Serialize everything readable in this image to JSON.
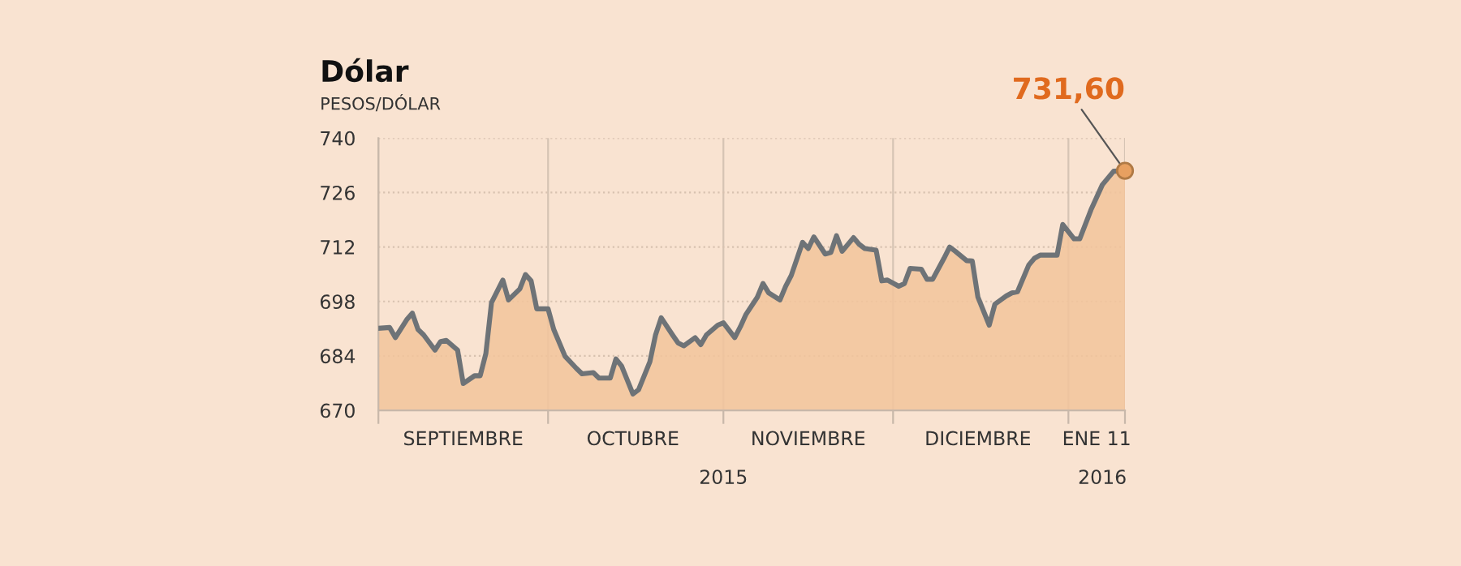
{
  "chart_data": {
    "type": "area",
    "title": "Dólar",
    "subtitle": "PESOS/DÓLAR",
    "x": [
      "2015-09-01",
      "2015-09-03",
      "2015-09-04",
      "2015-09-06",
      "2015-09-07",
      "2015-09-08",
      "2015-09-09",
      "2015-09-11",
      "2015-09-12",
      "2015-09-13",
      "2015-09-15",
      "2015-09-16",
      "2015-09-18",
      "2015-09-19",
      "2015-09-20",
      "2015-09-21",
      "2015-09-23",
      "2015-09-24",
      "2015-09-26",
      "2015-09-27",
      "2015-09-28",
      "2015-09-29",
      "2015-10-01",
      "2015-10-02",
      "2015-10-04",
      "2015-10-06",
      "2015-10-07",
      "2015-10-09",
      "2015-10-10",
      "2015-10-12",
      "2015-10-13",
      "2015-10-14",
      "2015-10-16",
      "2015-10-17",
      "2015-10-19",
      "2015-10-20",
      "2015-10-21",
      "2015-10-23",
      "2015-10-24",
      "2015-10-25",
      "2015-10-27",
      "2015-10-28",
      "2015-10-29",
      "2015-10-31",
      "2015-11-01",
      "2015-11-03",
      "2015-11-04",
      "2015-11-05",
      "2015-11-07",
      "2015-11-08",
      "2015-11-09",
      "2015-11-11",
      "2015-11-12",
      "2015-11-13",
      "2015-11-15",
      "2015-11-16",
      "2015-11-17",
      "2015-11-19",
      "2015-11-20",
      "2015-11-21",
      "2015-11-22",
      "2015-11-24",
      "2015-11-25",
      "2015-11-26",
      "2015-11-28",
      "2015-11-29",
      "2015-11-30",
      "2015-12-02",
      "2015-12-03",
      "2015-12-04",
      "2015-12-06",
      "2015-12-07",
      "2015-12-08",
      "2015-12-10",
      "2015-12-11",
      "2015-12-12",
      "2015-12-14",
      "2015-12-15",
      "2015-12-16",
      "2015-12-18",
      "2015-12-19",
      "2015-12-21",
      "2015-12-22",
      "2015-12-23",
      "2015-12-25",
      "2015-12-26",
      "2015-12-27",
      "2015-12-29",
      "2015-12-30",
      "2015-12-31",
      "2016-01-02",
      "2016-01-03",
      "2016-01-05",
      "2016-01-07",
      "2016-01-09",
      "2016-01-11"
    ],
    "series": [
      {
        "color": "#6e7377",
        "values": [
          691.1,
          691.3,
          688.7,
          693.3,
          695.0,
          690.8,
          689.4,
          685.5,
          687.7,
          688.0,
          685.5,
          676.9,
          678.9,
          678.9,
          684.6,
          697.7,
          703.5,
          698.4,
          701.2,
          704.9,
          703.3,
          696.1,
          696.1,
          690.8,
          683.9,
          680.8,
          679.4,
          679.7,
          678.3,
          678.3,
          683.2,
          681.4,
          674.2,
          675.3,
          682.5,
          689.4,
          693.8,
          689.4,
          687.3,
          686.6,
          688.7,
          686.9,
          689.4,
          691.9,
          692.5,
          688.7,
          691.5,
          694.7,
          699.1,
          702.6,
          700.2,
          698.4,
          701.9,
          704.7,
          713.2,
          711.6,
          714.6,
          710.2,
          710.6,
          714.9,
          710.9,
          714.4,
          712.7,
          711.6,
          711.2,
          703.3,
          703.5,
          701.9,
          702.6,
          706.5,
          706.3,
          703.7,
          703.7,
          709.1,
          712.0,
          710.9,
          708.5,
          708.4,
          699.1,
          691.9,
          697.3,
          699.4,
          700.2,
          700.5,
          707.4,
          709.1,
          709.9,
          709.9,
          709.9,
          717.8,
          714.1,
          714.1,
          721.6,
          728.0,
          731.5,
          731.6
        ]
      }
    ],
    "xlim": [
      "2015-09-01",
      "2016-01-11"
    ],
    "xticks": [
      {
        "value": "2015-09-01",
        "label": null
      },
      {
        "value": "2015-09-16",
        "label": "SEPTIEMBRE"
      },
      {
        "value": "2015-10-01",
        "label": null
      },
      {
        "value": "2015-10-16",
        "label": "OCTUBRE"
      },
      {
        "value": "2015-11-01",
        "label": null
      },
      {
        "value": "2015-11-16",
        "label": "NOVIEMBRE"
      },
      {
        "value": "2015-12-01",
        "label": null
      },
      {
        "value": "2015-12-16",
        "label": "DICIEMBRE"
      },
      {
        "value": "2016-01-01",
        "label": null
      },
      {
        "value": "2016-01-06",
        "label": "ENE 11"
      },
      {
        "value": "2016-01-11",
        "label": null
      }
    ],
    "x2lim": [
      "2015-09-01",
      "2016-01-11"
    ],
    "x2ticks": [
      {
        "value": "2015-11-01",
        "label": "2015"
      },
      {
        "value": "2016-01-07",
        "label": "2016"
      }
    ],
    "ylim": [
      670,
      740
    ],
    "yticks": [
      670,
      684,
      698,
      712,
      726,
      740
    ],
    "grid": true,
    "annotations": [
      {
        "text": "731,60",
        "x": "2016-01-11",
        "y": 731.6
      }
    ]
  }
}
